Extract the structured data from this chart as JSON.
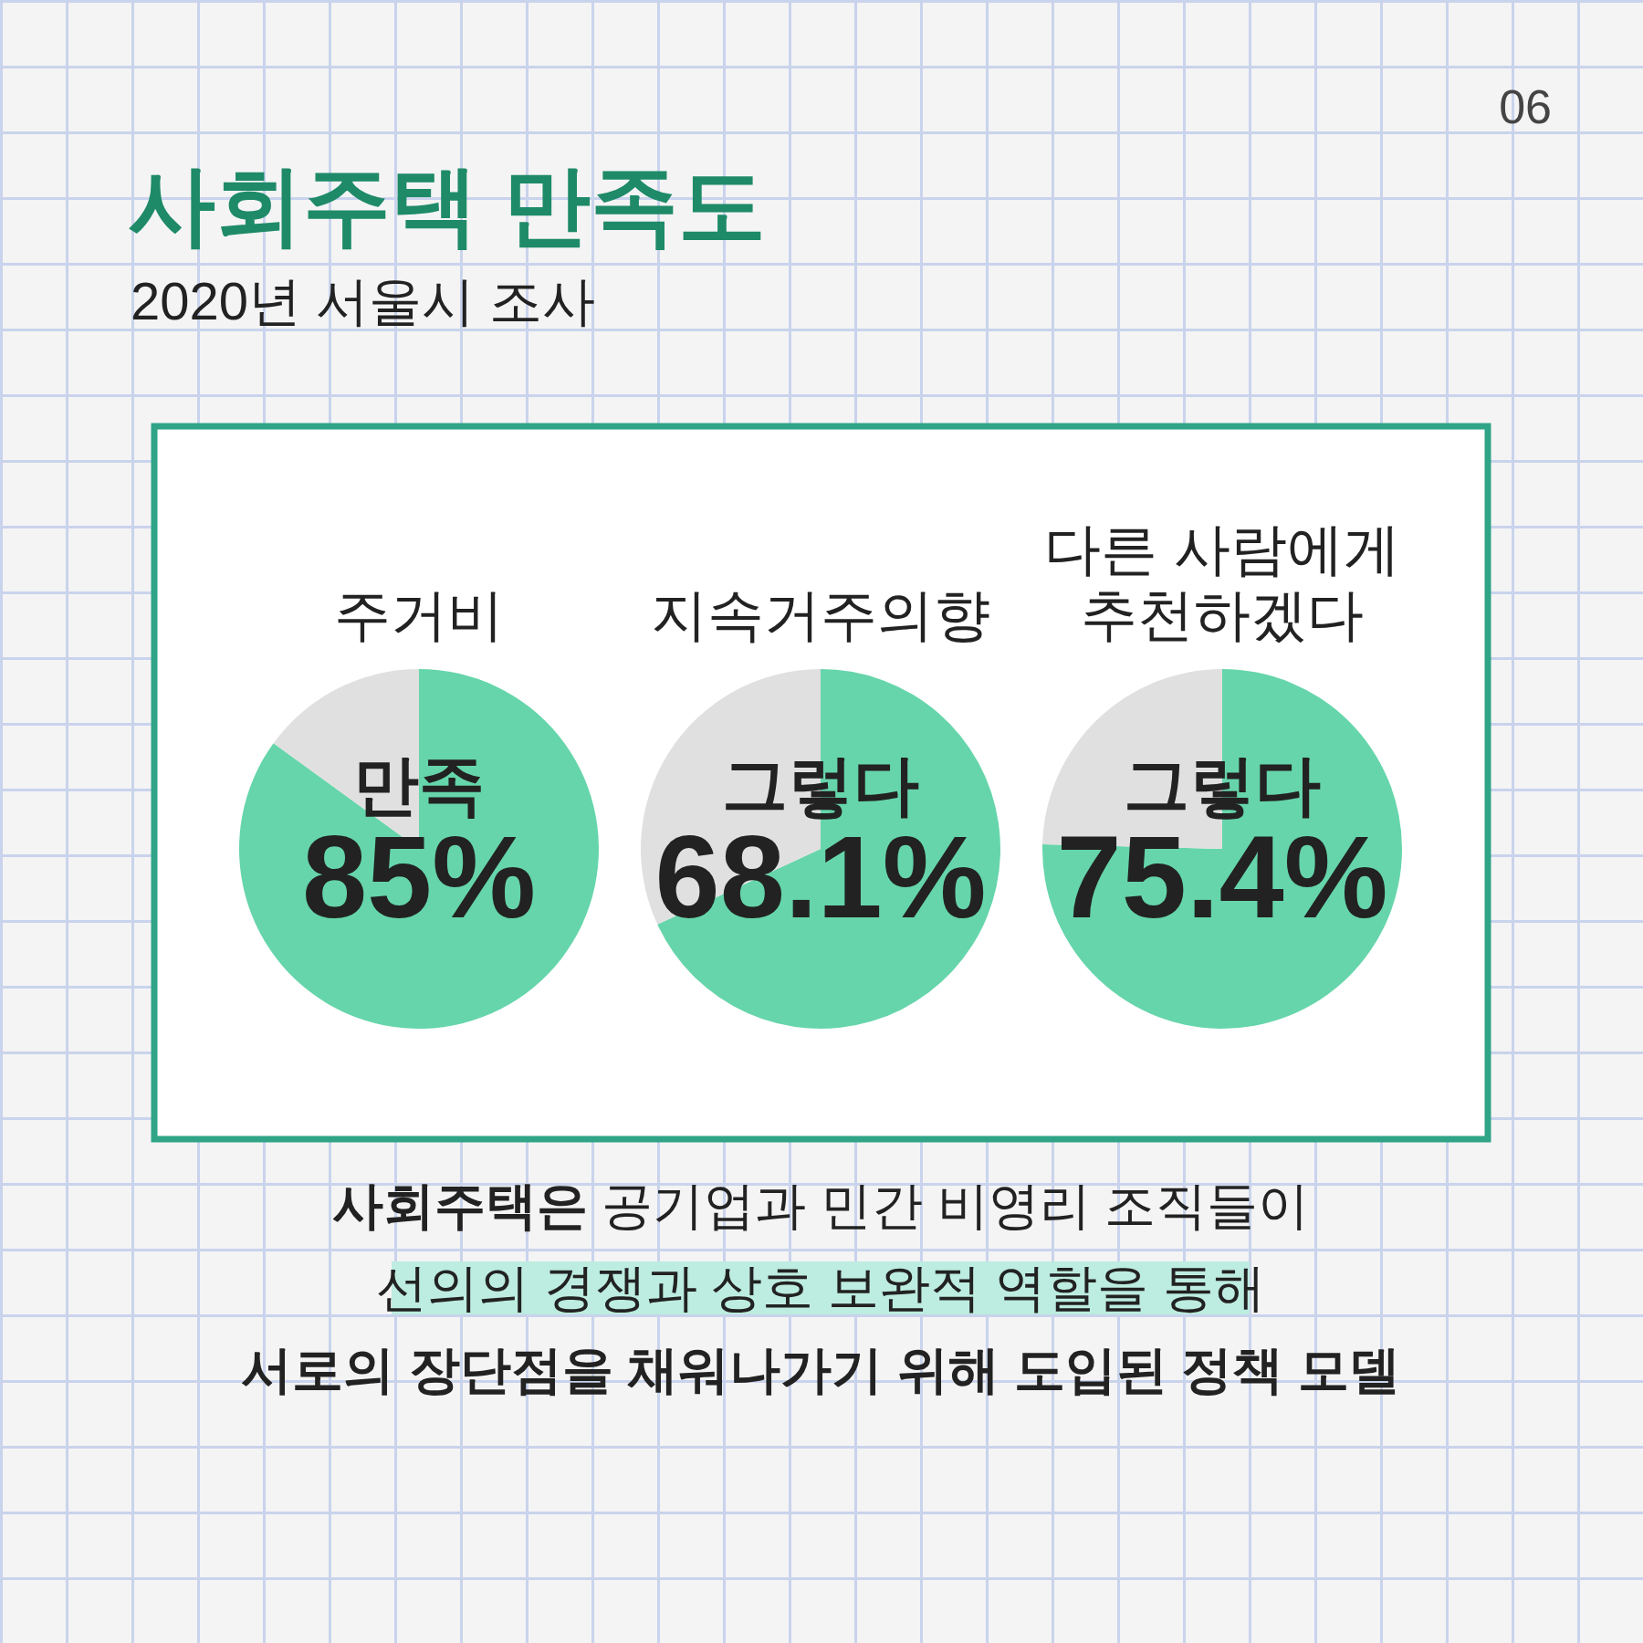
{
  "chart_data": [
    {
      "type": "other",
      "title": "사회주택 만족도",
      "subtitle": "2020년 서울시 조사",
      "annotations": [
        "06",
        "사회주택은 공기업과 민간 비영리 조직들이",
        "선의의 경쟁과 상호 보완적 역할을 통해",
        "서로의 장단점을 채워나가기 위해 도입된 정책 모델"
      ]
    },
    {
      "type": "pie",
      "title": "주거비",
      "categories": [
        "만족",
        null
      ],
      "values": [
        85,
        15
      ],
      "colors": [
        "#66d5ab",
        "#e0e0e0"
      ],
      "value_labels": [
        "85%",
        null
      ]
    },
    {
      "type": "pie",
      "title": "지속거주의향",
      "categories": [
        "그렇다",
        null
      ],
      "values": [
        68.1,
        31.9
      ],
      "colors": [
        "#66d5ab",
        "#e0e0e0"
      ],
      "value_labels": [
        "68.1%",
        null
      ]
    },
    {
      "type": "pie",
      "title": "다른 사람에게\n추천하겠다",
      "categories": [
        "그렇다",
        null
      ],
      "values": [
        75.4,
        24.6
      ],
      "colors": [
        "#66d5ab",
        "#e0e0e0"
      ],
      "value_labels": [
        "75.4%",
        null
      ]
    }
  ]
}
